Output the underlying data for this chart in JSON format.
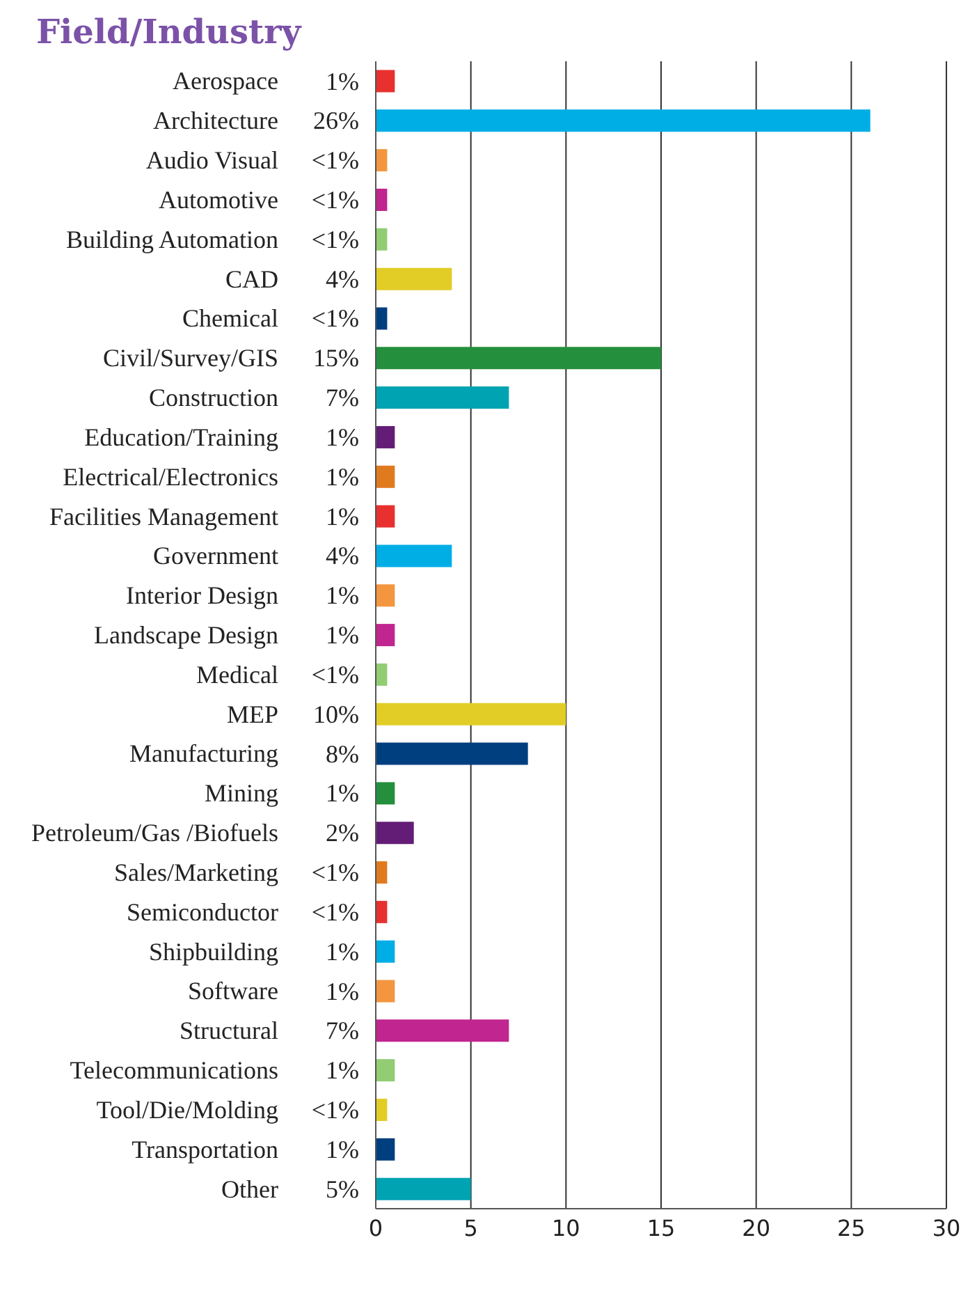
{
  "chart_data": {
    "type": "bar",
    "orientation": "horizontal",
    "title": "Field/Industry",
    "categories": [
      "Aerospace",
      "Architecture",
      "Audio Visual",
      "Automotive",
      "Building Automation",
      "CAD",
      "Chemical",
      "Civil/Survey/GIS",
      "Construction",
      "Education/Training",
      "Electrical/Electronics",
      "Facilities Management",
      "Government",
      "Interior Design",
      "Landscape Design",
      "Medical",
      "MEP",
      "Manufacturing",
      "Mining",
      "Petroleum/Gas /Biofuels",
      "Sales/Marketing",
      "Semiconductor",
      "Shipbuilding",
      "Software",
      "Structural",
      "Telecommunications",
      "Tool/Die/Molding",
      "Transportation",
      "Other"
    ],
    "values": [
      1,
      26,
      0.6,
      0.6,
      0.6,
      4,
      0.6,
      15,
      7,
      1,
      1,
      1,
      4,
      1,
      1,
      0.6,
      10,
      8,
      1,
      2,
      0.6,
      0.6,
      1,
      1,
      7,
      1,
      0.6,
      1,
      5
    ],
    "value_labels": [
      "1%",
      "26%",
      "<1%",
      "<1%",
      "<1%",
      "4%",
      "<1%",
      "15%",
      "7%",
      "1%",
      "1%",
      "1%",
      "4%",
      "1%",
      "1%",
      "<1%",
      "10%",
      "8%",
      "1%",
      "2%",
      "<1%",
      "<1%",
      "1%",
      "1%",
      "7%",
      "1%",
      "<1%",
      "1%",
      "5%"
    ],
    "colors": [
      "#e8312f",
      "#00aee6",
      "#f3963f",
      "#c1258f",
      "#92cd73",
      "#e2cd27",
      "#003f7f",
      "#248f3c",
      "#00a3b2",
      "#631d76",
      "#e07a1f",
      "#e8312f",
      "#00aee6",
      "#f3963f",
      "#c1258f",
      "#92cd73",
      "#e2cd27",
      "#003f7f",
      "#248f3c",
      "#631d76",
      "#e07a1f",
      "#e8312f",
      "#00aee6",
      "#f3963f",
      "#c1258f",
      "#92cd73",
      "#e2cd27",
      "#003f7f",
      "#00a3b2"
    ],
    "xlim": [
      0,
      30
    ],
    "xticks": [
      0,
      5,
      10,
      15,
      20,
      25,
      30
    ],
    "grid": "x"
  }
}
